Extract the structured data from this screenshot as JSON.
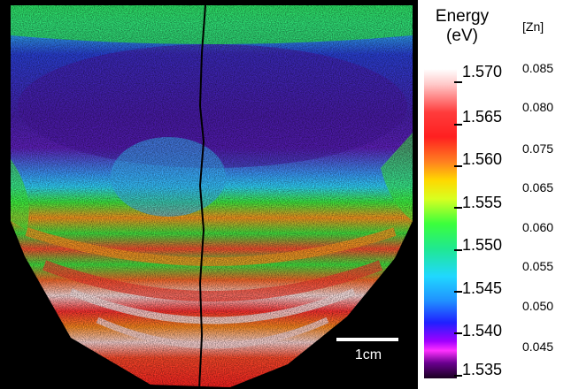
{
  "energy_colorbar": {
    "title_line1": "Energy",
    "title_line2": "(eV)",
    "labels": [
      "1.570",
      "1.565",
      "1.560",
      "1.555",
      "1.550",
      "1.545",
      "1.540",
      "1.535"
    ]
  },
  "zn_axis": {
    "title": "[Zn]",
    "labels": [
      "0.085",
      "0.080",
      "0.075",
      "0.065",
      "0.060",
      "0.055",
      "0.050",
      "0.045"
    ]
  },
  "scale_bar": {
    "label": "1cm"
  }
}
